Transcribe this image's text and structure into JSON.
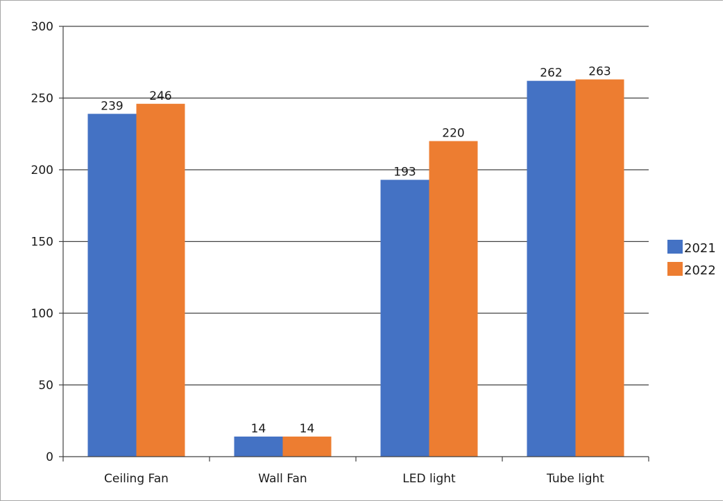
{
  "chart_data": {
    "type": "bar",
    "title": "",
    "xlabel": "",
    "ylabel": "",
    "categories": [
      "Ceiling Fan",
      "Wall Fan",
      "LED light",
      "Tube light"
    ],
    "series": [
      {
        "name": "2021",
        "values": [
          239,
          14,
          193,
          262
        ],
        "color": "#4472c4"
      },
      {
        "name": "2022",
        "values": [
          246,
          14,
          220,
          263
        ],
        "color": "#ed7d31"
      }
    ],
    "ylim": [
      0,
      300
    ],
    "yticks": [
      0,
      50,
      100,
      150,
      200,
      250,
      300
    ],
    "grid": true,
    "data_labels": true,
    "legend": "right"
  }
}
